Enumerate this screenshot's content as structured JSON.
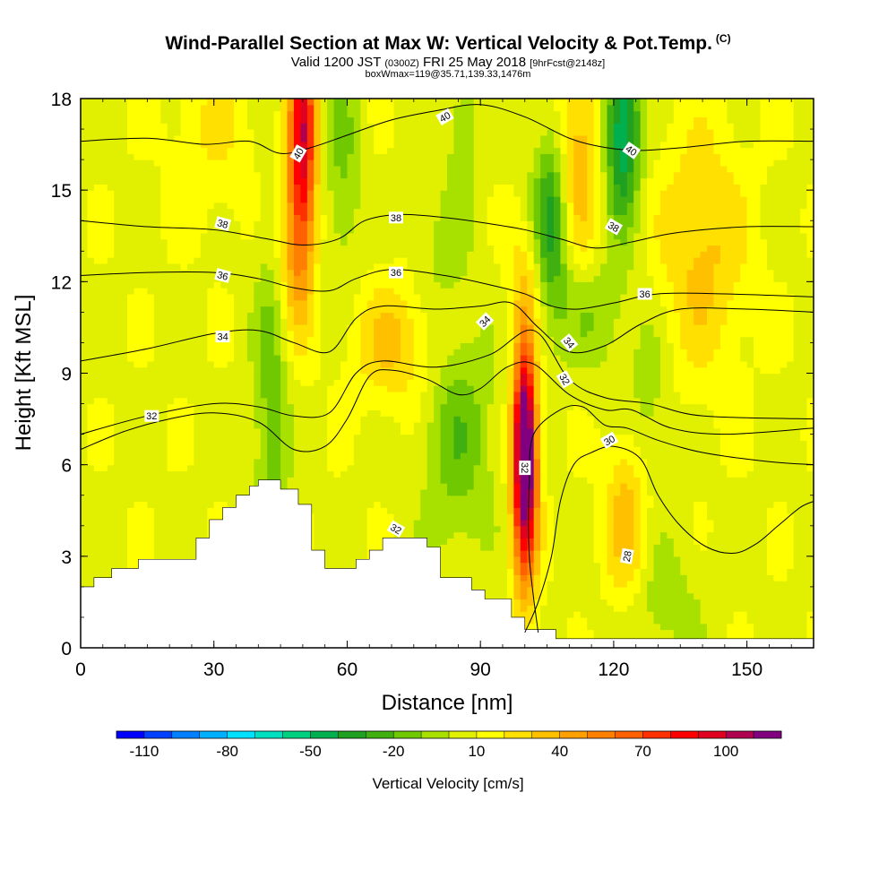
{
  "header": {
    "title": "Wind-Parallel Section at Max W: Vertical Velocity & Pot.Temp.",
    "copyright": "(C)",
    "valid_prefix": "Valid 1200 JST",
    "valid_utc": "(0300Z)",
    "valid_date": "FRI 25 May 2018",
    "forecast": "[9hrFcst@2148z]",
    "box_info": "boxWmax=119@35.71,139.33,1476m"
  },
  "chart_data": {
    "type": "heatmap",
    "xlabel": "Distance [nm]",
    "ylabel": "Height [Kft MSL]",
    "xlim": [
      0,
      165
    ],
    "ylim": [
      0,
      18
    ],
    "x_ticks": [
      "0",
      "30",
      "60",
      "90",
      "120",
      "150"
    ],
    "y_ticks": [
      "0",
      "3",
      "6",
      "9",
      "12",
      "15",
      "18"
    ],
    "colorbar": {
      "label": "Vertical Velocity [cm/s]",
      "tick_labels": [
        "-110",
        "-80",
        "-50",
        "-20",
        "10",
        "40",
        "70",
        "100"
      ],
      "tick_values": [
        -110,
        -80,
        -50,
        -20,
        10,
        40,
        70,
        100
      ],
      "range": [
        -120,
        120
      ],
      "colors": [
        "#0000ff",
        "#0040ff",
        "#0080ff",
        "#00b0ff",
        "#00e0ff",
        "#00e0c0",
        "#00d080",
        "#00b050",
        "#20a020",
        "#40b010",
        "#70c800",
        "#a8e000",
        "#e0f000",
        "#ffff00",
        "#ffe000",
        "#ffc000",
        "#ffa000",
        "#ff8000",
        "#ff6000",
        "#ff3000",
        "#ff0000",
        "#e00020",
        "#b00050",
        "#800080"
      ]
    },
    "terrain": [
      [
        0,
        2
      ],
      [
        3,
        2
      ],
      [
        3,
        2.3
      ],
      [
        7,
        2.3
      ],
      [
        7,
        2.6
      ],
      [
        13,
        2.6
      ],
      [
        13,
        2.9
      ],
      [
        26,
        2.9
      ],
      [
        26,
        3.6
      ],
      [
        29,
        3.6
      ],
      [
        29,
        4.2
      ],
      [
        32,
        4.2
      ],
      [
        32,
        4.6
      ],
      [
        35,
        4.6
      ],
      [
        35,
        5
      ],
      [
        38,
        5
      ],
      [
        38,
        5.3
      ],
      [
        40,
        5.3
      ],
      [
        40,
        5.5
      ],
      [
        45,
        5.5
      ],
      [
        45,
        5.2
      ],
      [
        49,
        5.2
      ],
      [
        49,
        4.7
      ],
      [
        52,
        4.7
      ],
      [
        52,
        3.2
      ],
      [
        55,
        3.2
      ],
      [
        55,
        2.6
      ],
      [
        62,
        2.6
      ],
      [
        62,
        2.9
      ],
      [
        65,
        2.9
      ],
      [
        65,
        3.2
      ],
      [
        68,
        3.2
      ],
      [
        68,
        3.6
      ],
      [
        78,
        3.6
      ],
      [
        78,
        3.3
      ],
      [
        81,
        3.3
      ],
      [
        81,
        2.3
      ],
      [
        88,
        2.3
      ],
      [
        88,
        1.9
      ],
      [
        91,
        1.9
      ],
      [
        91,
        1.6
      ],
      [
        97,
        1.6
      ],
      [
        97,
        1.0
      ],
      [
        100,
        1.0
      ],
      [
        100,
        0.6
      ],
      [
        107,
        0.6
      ],
      [
        107,
        0.3
      ],
      [
        165,
        0.3
      ]
    ],
    "w_field": [
      {
        "x": 50,
        "y": 17,
        "sx": 3,
        "sy": 4,
        "w": 85
      },
      {
        "x": 48,
        "y": 13,
        "sx": 4,
        "sy": 3,
        "w": 30
      },
      {
        "x": 100,
        "y": 7,
        "sx": 2.5,
        "sy": 3,
        "w": 120
      },
      {
        "x": 100,
        "y": 4,
        "sx": 3,
        "sy": 3,
        "w": 50
      },
      {
        "x": 123,
        "y": 4,
        "sx": 5,
        "sy": 3,
        "w": 30
      },
      {
        "x": 140,
        "y": 13,
        "sx": 10,
        "sy": 4,
        "w": 25
      },
      {
        "x": 112,
        "y": 16,
        "sx": 5,
        "sy": 4,
        "w": 30
      },
      {
        "x": 71,
        "y": 10,
        "sx": 10,
        "sy": 2,
        "w": 25
      },
      {
        "x": 30,
        "y": 17,
        "sx": 10,
        "sy": 3,
        "w": 12
      },
      {
        "x": 100,
        "y": 12,
        "sx": 4,
        "sy": 2,
        "w": 20
      },
      {
        "x": 43,
        "y": 8,
        "sx": 4,
        "sy": 6,
        "w": -25
      },
      {
        "x": 59,
        "y": 16,
        "sx": 4,
        "sy": 4,
        "w": -20
      },
      {
        "x": 122,
        "y": 17,
        "sx": 4,
        "sy": 3,
        "w": -60
      },
      {
        "x": 106,
        "y": 14,
        "sx": 4,
        "sy": 3,
        "w": -45
      },
      {
        "x": 115,
        "y": 11,
        "sx": 8,
        "sy": 2,
        "w": -20
      },
      {
        "x": 85,
        "y": 7,
        "sx": 8,
        "sy": 4,
        "w": -25
      },
      {
        "x": 128,
        "y": 8,
        "sx": 5,
        "sy": 3,
        "w": -15
      },
      {
        "x": 130,
        "y": 1.5,
        "sx": 10,
        "sy": 2,
        "w": -15
      },
      {
        "x": 86,
        "y": 17,
        "sx": 4,
        "sy": 3,
        "w": -15
      },
      {
        "x": 80,
        "y": 13,
        "sx": 6,
        "sy": 2,
        "w": -10
      }
    ],
    "theta_contours": [
      {
        "level": "28",
        "points": [
          [
            100,
            0.5
          ],
          [
            103,
            1.5
          ],
          [
            106,
            3
          ],
          [
            108,
            4.8
          ],
          [
            111,
            6
          ],
          [
            115,
            6.4
          ],
          [
            120,
            6.6
          ],
          [
            126,
            6.2
          ],
          [
            130,
            5
          ],
          [
            135,
            4
          ],
          [
            141,
            3.3
          ],
          [
            147,
            3.1
          ],
          [
            152,
            3.4
          ],
          [
            157,
            4
          ],
          [
            162,
            4.6
          ],
          [
            165,
            4.8
          ]
        ]
      },
      {
        "level": "30",
        "points": [
          [
            103,
            0.5
          ],
          [
            101,
            3
          ],
          [
            101,
            5.5
          ],
          [
            102,
            7
          ],
          [
            108,
            7.8
          ],
          [
            113,
            7.9
          ],
          [
            118,
            7.3
          ],
          [
            123,
            7.2
          ],
          [
            130,
            6.8
          ],
          [
            140,
            6.4
          ],
          [
            155,
            6.1
          ],
          [
            165,
            6
          ]
        ]
      },
      {
        "level": "32",
        "points": [
          [
            0,
            6.5
          ],
          [
            10,
            7.1
          ],
          [
            20,
            7.5
          ],
          [
            30,
            7.7
          ],
          [
            40,
            7.4
          ],
          [
            48,
            6.5
          ],
          [
            55,
            6.6
          ],
          [
            60,
            7.5
          ],
          [
            65,
            8.9
          ],
          [
            70,
            9.1
          ],
          [
            78,
            8.8
          ],
          [
            85,
            8.3
          ],
          [
            90,
            8.5
          ],
          [
            96,
            9.2
          ],
          [
            102,
            9.3
          ],
          [
            110,
            8.3
          ],
          [
            118,
            7.8
          ],
          [
            124,
            7.8
          ],
          [
            133,
            7.2
          ],
          [
            145,
            7
          ],
          [
            165,
            7.2
          ]
        ]
      },
      {
        "level": "32",
        "points": [
          [
            0,
            7
          ],
          [
            15,
            7.6
          ],
          [
            30,
            8
          ],
          [
            40,
            7.9
          ],
          [
            48,
            7.6
          ],
          [
            56,
            7.7
          ],
          [
            62,
            9
          ],
          [
            68,
            9.4
          ],
          [
            80,
            9.2
          ],
          [
            92,
            9.6
          ],
          [
            102,
            10.4
          ],
          [
            110,
            8.8
          ],
          [
            118,
            8.2
          ],
          [
            128,
            8
          ],
          [
            140,
            7.6
          ],
          [
            165,
            7.5
          ]
        ]
      },
      {
        "level": "34",
        "points": [
          [
            0,
            9.4
          ],
          [
            15,
            9.8
          ],
          [
            30,
            10.3
          ],
          [
            40,
            10.4
          ],
          [
            48,
            10
          ],
          [
            56,
            9.7
          ],
          [
            62,
            10.8
          ],
          [
            68,
            11.2
          ],
          [
            80,
            11.1
          ],
          [
            90,
            11.2
          ],
          [
            97,
            11.3
          ],
          [
            103,
            10.5
          ],
          [
            110,
            9.7
          ],
          [
            118,
            9.9
          ],
          [
            126,
            10.6
          ],
          [
            135,
            11.1
          ],
          [
            150,
            11.1
          ],
          [
            165,
            11
          ]
        ]
      },
      {
        "level": "36",
        "points": [
          [
            0,
            12.2
          ],
          [
            15,
            12.3
          ],
          [
            30,
            12.3
          ],
          [
            40,
            12.1
          ],
          [
            48,
            11.8
          ],
          [
            56,
            11.7
          ],
          [
            62,
            12.1
          ],
          [
            70,
            12.4
          ],
          [
            82,
            12.2
          ],
          [
            92,
            11.9
          ],
          [
            100,
            11.6
          ],
          [
            106,
            11.2
          ],
          [
            112,
            11.1
          ],
          [
            120,
            11.3
          ],
          [
            130,
            11.6
          ],
          [
            145,
            11.6
          ],
          [
            165,
            11.5
          ]
        ]
      },
      {
        "level": "38",
        "points": [
          [
            0,
            14
          ],
          [
            15,
            13.8
          ],
          [
            30,
            13.7
          ],
          [
            42,
            13.4
          ],
          [
            50,
            13.2
          ],
          [
            58,
            13.4
          ],
          [
            64,
            14
          ],
          [
            72,
            14.2
          ],
          [
            82,
            14.1
          ],
          [
            92,
            13.9
          ],
          [
            100,
            13.7
          ],
          [
            108,
            13.4
          ],
          [
            116,
            13.1
          ],
          [
            124,
            13.3
          ],
          [
            134,
            13.6
          ],
          [
            150,
            13.8
          ],
          [
            165,
            13.8
          ]
        ]
      },
      {
        "level": "40",
        "points": [
          [
            0,
            16.6
          ],
          [
            15,
            16.7
          ],
          [
            28,
            16.5
          ],
          [
            38,
            16.6
          ],
          [
            45,
            16.2
          ],
          [
            52,
            16.4
          ],
          [
            60,
            16.8
          ],
          [
            70,
            17.3
          ],
          [
            80,
            17.6
          ],
          [
            90,
            17.8
          ],
          [
            100,
            17.4
          ],
          [
            110,
            16.7
          ],
          [
            118,
            16.4
          ],
          [
            126,
            16.3
          ],
          [
            136,
            16.4
          ],
          [
            150,
            16.6
          ],
          [
            165,
            16.6
          ]
        ]
      }
    ],
    "contour_labels": [
      {
        "text": "40",
        "x": 49,
        "y": 16.2,
        "angle": -60
      },
      {
        "text": "40",
        "x": 82,
        "y": 17.4,
        "angle": -30
      },
      {
        "text": "40",
        "x": 124,
        "y": 16.3,
        "angle": 35
      },
      {
        "text": "38",
        "x": 32,
        "y": 13.9,
        "angle": 15
      },
      {
        "text": "38",
        "x": 71,
        "y": 14.1,
        "angle": 0
      },
      {
        "text": "38",
        "x": 120,
        "y": 13.8,
        "angle": 30
      },
      {
        "text": "36",
        "x": 32,
        "y": 12.2,
        "angle": 15
      },
      {
        "text": "36",
        "x": 71,
        "y": 12.3,
        "angle": 0
      },
      {
        "text": "36",
        "x": 127,
        "y": 11.6,
        "angle": 0
      },
      {
        "text": "34",
        "x": 32,
        "y": 10.2,
        "angle": 0
      },
      {
        "text": "34",
        "x": 91,
        "y": 10.7,
        "angle": -45
      },
      {
        "text": "34",
        "x": 110,
        "y": 10,
        "angle": 50
      },
      {
        "text": "32",
        "x": 16,
        "y": 7.6,
        "angle": 0
      },
      {
        "text": "32",
        "x": 109,
        "y": 8.8,
        "angle": 60
      },
      {
        "text": "32",
        "x": 100,
        "y": 5.9,
        "angle": 90
      },
      {
        "text": "32",
        "x": 71,
        "y": 3.9,
        "angle": 30
      },
      {
        "text": "30",
        "x": 119,
        "y": 6.8,
        "angle": -30
      },
      {
        "text": "28",
        "x": 123,
        "y": 3,
        "angle": -80
      }
    ]
  }
}
